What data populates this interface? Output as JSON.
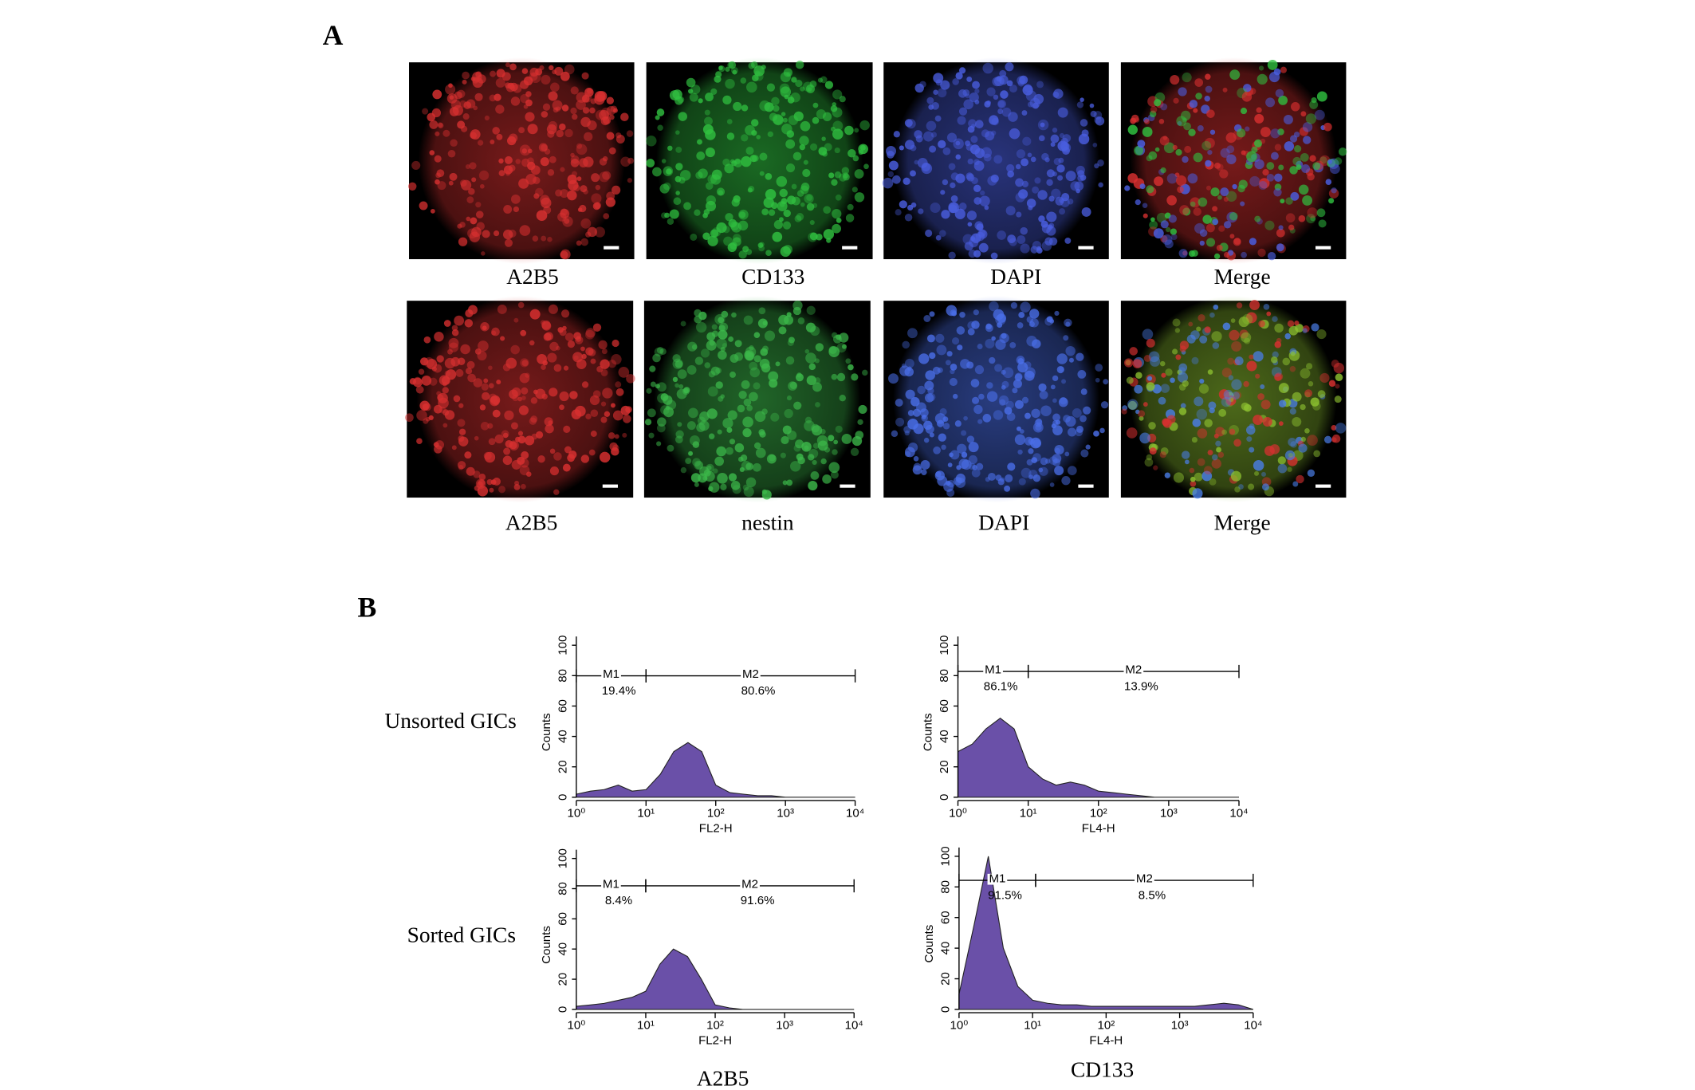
{
  "labels": {
    "a": "A",
    "b": "B"
  },
  "images": [
    {
      "caption": "A2B5",
      "colors": [
        "#d83030"
      ]
    },
    {
      "caption": "CD133",
      "colors": [
        "#30c040"
      ]
    },
    {
      "caption": "DAPI",
      "colors": [
        "#4a5ee0"
      ]
    },
    {
      "caption": "Merge",
      "colors": [
        "#d83030",
        "#30c040",
        "#4a5ee0"
      ]
    },
    {
      "caption": "A2B5",
      "colors": [
        "#d83030"
      ]
    },
    {
      "caption": "nestin",
      "colors": [
        "#3cb84a"
      ]
    },
    {
      "caption": "DAPI",
      "colors": [
        "#4a6ee8"
      ]
    },
    {
      "caption": "Merge",
      "colors": [
        "#8cc030",
        "#d83030",
        "#4a7ee8"
      ]
    }
  ],
  "row_labels": [
    "Unsorted GICs",
    "Sorted GICs"
  ],
  "column_labels": [
    "A2B5",
    "CD133"
  ],
  "chart_data": [
    {
      "type": "area",
      "xlabel": "FL2-H",
      "ylabel": "Counts",
      "color": "#6a50a8",
      "xlog": true,
      "x": [
        1,
        1.6,
        2.5,
        4,
        6.3,
        10,
        16,
        25,
        40,
        63,
        100,
        160,
        250,
        400,
        630,
        1000,
        1600,
        2500,
        4000,
        6300,
        10000
      ],
      "values": [
        2,
        4,
        5,
        8,
        4,
        5,
        15,
        30,
        36,
        30,
        8,
        3,
        2,
        1,
        1,
        0,
        0,
        0,
        0,
        0,
        0
      ],
      "xlim": [
        1,
        10000
      ],
      "ylim": [
        0,
        100
      ],
      "yticks": [
        0,
        20,
        40,
        60,
        80,
        100
      ],
      "xticks": [
        {
          "value": 1,
          "label": "10⁰"
        },
        {
          "value": 10,
          "label": "10¹"
        },
        {
          "value": 100,
          "label": "10²"
        },
        {
          "value": 1000,
          "label": "10³"
        },
        {
          "value": 10000,
          "label": "10⁴"
        }
      ],
      "gates": [
        {
          "name": "M1",
          "range": [
            1,
            10
          ],
          "value": 19.4,
          "value_label": "19.4%"
        },
        {
          "name": "M2",
          "range": [
            10,
            10000
          ],
          "value": 80.6,
          "value_label": "80.6%"
        }
      ]
    },
    {
      "type": "area",
      "xlabel": "FL4-H",
      "ylabel": "Counts",
      "color": "#6a50a8",
      "xlog": true,
      "x": [
        1,
        1.6,
        2.5,
        4,
        6.3,
        10,
        16,
        25,
        40,
        63,
        100,
        160,
        250,
        400,
        630,
        1000,
        1600,
        2500,
        4000,
        6300,
        10000
      ],
      "values": [
        30,
        35,
        45,
        52,
        45,
        20,
        12,
        8,
        10,
        8,
        4,
        3,
        2,
        1,
        0,
        0,
        0,
        0,
        0,
        0,
        0
      ],
      "xlim": [
        1,
        10000
      ],
      "ylim": [
        0,
        100
      ],
      "yticks": [
        0,
        20,
        40,
        60,
        80,
        100
      ],
      "xticks": [
        {
          "value": 1,
          "label": "10⁰"
        },
        {
          "value": 10,
          "label": "10¹"
        },
        {
          "value": 100,
          "label": "10²"
        },
        {
          "value": 1000,
          "label": "10³"
        },
        {
          "value": 10000,
          "label": "10⁴"
        }
      ],
      "gates": [
        {
          "name": "M1",
          "range": [
            1,
            10
          ],
          "value": 86.1,
          "value_label": "86.1%"
        },
        {
          "name": "M2",
          "range": [
            10,
            10000
          ],
          "value": 13.9,
          "value_label": "13.9%"
        }
      ]
    },
    {
      "type": "area",
      "xlabel": "FL2-H",
      "ylabel": "Counts",
      "color": "#6a50a8",
      "xlog": true,
      "x": [
        1,
        1.6,
        2.5,
        4,
        6.3,
        10,
        16,
        25,
        40,
        63,
        100,
        160,
        250,
        400,
        630,
        1000,
        1600,
        2500,
        4000,
        6300,
        10000
      ],
      "values": [
        2,
        3,
        4,
        6,
        8,
        12,
        30,
        40,
        35,
        20,
        3,
        1,
        0,
        0,
        0,
        0,
        0,
        0,
        0,
        0,
        0
      ],
      "xlim": [
        1,
        10000
      ],
      "ylim": [
        0,
        100
      ],
      "yticks": [
        0,
        20,
        40,
        60,
        80,
        100
      ],
      "xticks": [
        {
          "value": 1,
          "label": "10⁰"
        },
        {
          "value": 10,
          "label": "10¹"
        },
        {
          "value": 100,
          "label": "10²"
        },
        {
          "value": 1000,
          "label": "10³"
        },
        {
          "value": 10000,
          "label": "10⁴"
        }
      ],
      "gates": [
        {
          "name": "M1",
          "range": [
            1,
            10
          ],
          "value": 8.4,
          "value_label": "8.4%"
        },
        {
          "name": "M2",
          "range": [
            10,
            10000
          ],
          "value": 91.6,
          "value_label": "91.6%"
        }
      ]
    },
    {
      "type": "area",
      "xlabel": "FL4-H",
      "ylabel": "Counts",
      "color": "#6a50a8",
      "xlog": true,
      "x": [
        1,
        1.6,
        2.5,
        4,
        6.3,
        10,
        16,
        25,
        40,
        63,
        100,
        160,
        250,
        400,
        630,
        1000,
        1600,
        2500,
        4000,
        6300,
        10000
      ],
      "values": [
        10,
        55,
        100,
        40,
        15,
        6,
        4,
        3,
        3,
        2,
        2,
        2,
        2,
        2,
        2,
        2,
        2,
        3,
        4,
        3,
        0
      ],
      "xlim": [
        1,
        10000
      ],
      "ylim": [
        0,
        100
      ],
      "yticks": [
        0,
        20,
        40,
        60,
        80,
        100
      ],
      "xticks": [
        {
          "value": 1,
          "label": "10⁰"
        },
        {
          "value": 10,
          "label": "10¹"
        },
        {
          "value": 100,
          "label": "10²"
        },
        {
          "value": 1000,
          "label": "10³"
        },
        {
          "value": 10000,
          "label": "10⁴"
        }
      ],
      "gates": [
        {
          "name": "M1",
          "range": [
            1,
            11
          ],
          "value": 91.5,
          "value_label": "91.5%"
        },
        {
          "name": "M2",
          "range": [
            11,
            10000
          ],
          "value": 8.5,
          "value_label": "8.5%"
        }
      ]
    }
  ]
}
